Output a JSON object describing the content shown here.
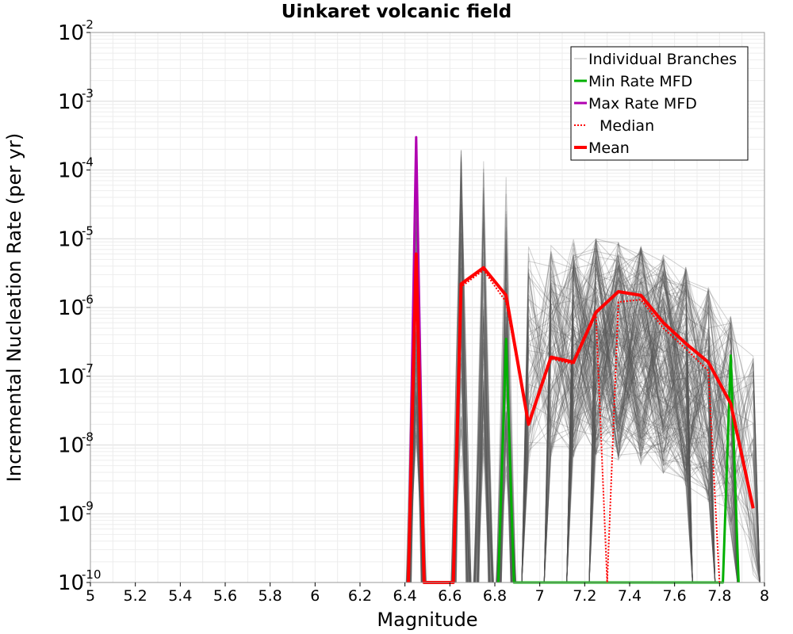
{
  "chart_data": {
    "type": "line",
    "title": "Uinkaret volcanic field",
    "xlabel": "Magnitude",
    "ylabel": "Incremental Nucleation Rate (per yr)",
    "xlim": [
      5,
      8
    ],
    "ylim": [
      1e-10,
      0.01
    ],
    "yscale": "log",
    "grid": true,
    "legend_position": "top-right",
    "x_ticks": [
      "5",
      "5.2",
      "5.4",
      "5.6",
      "5.8",
      "6",
      "6.2",
      "6.4",
      "6.6",
      "6.8",
      "7",
      "7.2",
      "7.4",
      "7.6",
      "7.8",
      "8"
    ],
    "x_tick_values": [
      5,
      5.2,
      5.4,
      5.6,
      5.8,
      6,
      6.2,
      6.4,
      6.6,
      6.8,
      7,
      7.2,
      7.4,
      7.6,
      7.8,
      8
    ],
    "y_tick_base": "10",
    "y_ticks": [
      {
        "exp": "-10",
        "value": 1e-10
      },
      {
        "exp": "-9",
        "value": 1e-09
      },
      {
        "exp": "-8",
        "value": 1e-08
      },
      {
        "exp": "-7",
        "value": 1e-07
      },
      {
        "exp": "-6",
        "value": 1e-06
      },
      {
        "exp": "-5",
        "value": 1e-05
      },
      {
        "exp": "-4",
        "value": 0.0001
      },
      {
        "exp": "-3",
        "value": 0.001
      },
      {
        "exp": "-2",
        "value": 0.01
      }
    ],
    "floor_value": 1e-10,
    "series": [
      {
        "name": "Individual Branches",
        "color": "#555555",
        "style": "thin",
        "envelope": [
          {
            "x": 6.45,
            "y_max": 0.0003
          },
          {
            "x": 6.65,
            "y_max": 0.0002
          },
          {
            "x": 6.75,
            "y_max": 0.0002
          },
          {
            "x": 6.85,
            "y_max": 0.0001
          },
          {
            "x": 6.95,
            "y_max": 8e-06
          },
          {
            "x": 7.05,
            "y_max": 9e-06
          },
          {
            "x": 7.15,
            "y_max": 1e-05
          },
          {
            "x": 7.25,
            "y_max": 1e-05
          },
          {
            "x": 7.35,
            "y_max": 9e-06
          },
          {
            "x": 7.45,
            "y_max": 8e-06
          },
          {
            "x": 7.55,
            "y_max": 6e-06
          },
          {
            "x": 7.65,
            "y_max": 4e-06
          },
          {
            "x": 7.75,
            "y_max": 2e-06
          },
          {
            "x": 7.85,
            "y_max": 8e-07
          },
          {
            "x": 7.95,
            "y_max": 2e-07
          }
        ]
      },
      {
        "name": "Min Rate MFD",
        "color": "#00b000",
        "points": [
          {
            "x": 6.815,
            "y": 1e-10
          },
          {
            "x": 6.85,
            "y": 3.5e-07
          },
          {
            "x": 6.885,
            "y": 1e-10
          },
          {
            "x": 7.815,
            "y": 1e-10
          },
          {
            "x": 7.85,
            "y": 2e-07
          },
          {
            "x": 7.885,
            "y": 1e-10
          }
        ]
      },
      {
        "name": "Max Rate MFD",
        "color": "#b000b0",
        "points": [
          {
            "x": 6.415,
            "y": 1e-10
          },
          {
            "x": 6.45,
            "y": 0.0003
          },
          {
            "x": 6.485,
            "y": 1e-10
          }
        ]
      },
      {
        "name": "Median",
        "color": "#ff0000",
        "dashed": true,
        "points": [
          {
            "x": 6.415,
            "y": 1e-10
          },
          {
            "x": 6.45,
            "y": 5e-06
          },
          {
            "x": 6.485,
            "y": 1e-10
          },
          {
            "x": 6.615,
            "y": 1e-10
          },
          {
            "x": 6.65,
            "y": 2e-06
          },
          {
            "x": 6.75,
            "y": 3.5e-06
          },
          {
            "x": 6.85,
            "y": 1.2e-06
          },
          {
            "x": 6.95,
            "y": 2e-08
          },
          {
            "x": 7.05,
            "y": 1.8e-07
          },
          {
            "x": 7.15,
            "y": 1.5e-07
          },
          {
            "x": 7.25,
            "y": 8e-07
          },
          {
            "x": 7.3,
            "y": 1e-10
          },
          {
            "x": 7.35,
            "y": 1.2e-06
          },
          {
            "x": 7.45,
            "y": 1.3e-06
          },
          {
            "x": 7.55,
            "y": 5e-07
          },
          {
            "x": 7.65,
            "y": 2.5e-07
          },
          {
            "x": 7.75,
            "y": 1.2e-07
          },
          {
            "x": 7.8,
            "y": 1e-10
          }
        ]
      },
      {
        "name": "Mean",
        "color": "#ff0000",
        "points": [
          {
            "x": 6.415,
            "y": 1e-10
          },
          {
            "x": 6.45,
            "y": 6e-06
          },
          {
            "x": 6.485,
            "y": 1e-10
          },
          {
            "x": 6.615,
            "y": 1e-10
          },
          {
            "x": 6.65,
            "y": 2.2e-06
          },
          {
            "x": 6.75,
            "y": 3.8e-06
          },
          {
            "x": 6.85,
            "y": 1.5e-06
          },
          {
            "x": 6.95,
            "y": 2e-08
          },
          {
            "x": 7.05,
            "y": 1.9e-07
          },
          {
            "x": 7.15,
            "y": 1.6e-07
          },
          {
            "x": 7.25,
            "y": 8.5e-07
          },
          {
            "x": 7.35,
            "y": 1.7e-06
          },
          {
            "x": 7.45,
            "y": 1.5e-06
          },
          {
            "x": 7.55,
            "y": 6e-07
          },
          {
            "x": 7.65,
            "y": 3e-07
          },
          {
            "x": 7.75,
            "y": 1.6e-07
          },
          {
            "x": 7.85,
            "y": 4e-08
          },
          {
            "x": 7.95,
            "y": 1.2e-09
          }
        ]
      }
    ]
  },
  "legend": {
    "items": [
      "Individual Branches",
      "Min Rate MFD",
      "Max Rate MFD",
      "Median",
      "Mean"
    ]
  }
}
